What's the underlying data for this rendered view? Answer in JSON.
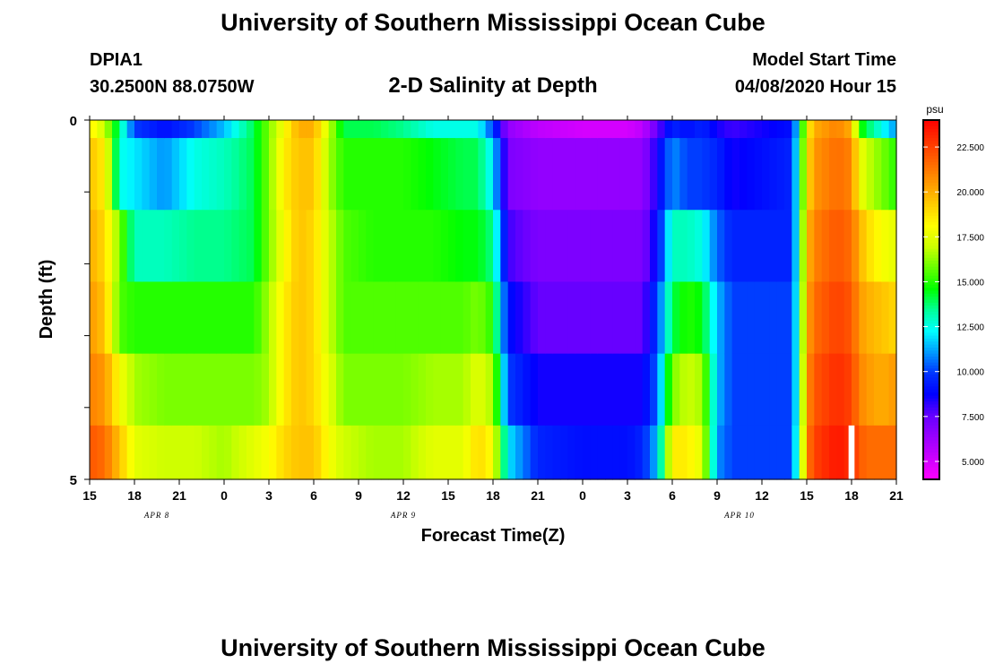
{
  "header": {
    "title": "University of Southern Mississippi Ocean Cube",
    "station_id": "DPIA1",
    "coordinates": "30.2500N 88.0750W",
    "plot_title": "2-D Salinity at Depth",
    "model_start_label": "Model Start Time",
    "model_start_value": "04/08/2020 Hour 15"
  },
  "footer": {
    "title": "University of Southern Mississippi Ocean Cube"
  },
  "chart_data": {
    "type": "heatmap",
    "title": "2-D Salinity at Depth",
    "xlabel": "Forecast Time(Z)",
    "ylabel": "Depth (ft)",
    "x_start_hour": 15,
    "x_end_hour": 69,
    "x_ticks": [
      {
        "hour": 15,
        "label": "15"
      },
      {
        "hour": 18,
        "label": "18"
      },
      {
        "hour": 21,
        "label": "21"
      },
      {
        "hour": 24,
        "label": "0"
      },
      {
        "hour": 27,
        "label": "3"
      },
      {
        "hour": 30,
        "label": "6"
      },
      {
        "hour": 33,
        "label": "9"
      },
      {
        "hour": 36,
        "label": "12"
      },
      {
        "hour": 39,
        "label": "15"
      },
      {
        "hour": 42,
        "label": "18"
      },
      {
        "hour": 45,
        "label": "21"
      },
      {
        "hour": 48,
        "label": "0"
      },
      {
        "hour": 51,
        "label": "3"
      },
      {
        "hour": 54,
        "label": "6"
      },
      {
        "hour": 57,
        "label": "9"
      },
      {
        "hour": 60,
        "label": "12"
      },
      {
        "hour": 63,
        "label": "15"
      },
      {
        "hour": 66,
        "label": "18"
      },
      {
        "hour": 69,
        "label": "21"
      }
    ],
    "date_labels": [
      {
        "hour": 19.5,
        "label": "APR 8"
      },
      {
        "hour": 36,
        "label": "APR 9"
      },
      {
        "hour": 58.5,
        "label": "APR 10"
      }
    ],
    "y_ticks": [
      {
        "depth": 0,
        "label": "0"
      },
      {
        "depth": 5,
        "label": "5"
      }
    ],
    "y_range": [
      0,
      5
    ],
    "depth_levels": [
      0.25,
      1.25,
      2.25,
      3.25,
      4.25
    ],
    "profiles": [
      {
        "hour": 15,
        "values": [
          18.5,
          19.5,
          20.0,
          20.5,
          21.0,
          22.0
        ]
      },
      {
        "hour": 16,
        "values": [
          17.0,
          18.5,
          19.0,
          19.5,
          20.5,
          21.5
        ]
      },
      {
        "hour": 17,
        "values": [
          13.5,
          12.5,
          16.0,
          15.5,
          18.0,
          19.5
        ]
      },
      {
        "hour": 18,
        "values": [
          10.0,
          12.0,
          13.0,
          15.0,
          16.5,
          17.5
        ]
      },
      {
        "hour": 20,
        "values": [
          9.0,
          11.0,
          13.0,
          15.0,
          16.0,
          17.0
        ]
      },
      {
        "hour": 22,
        "values": [
          10.0,
          12.5,
          13.5,
          15.0,
          16.0,
          17.0
        ]
      },
      {
        "hour": 24,
        "values": [
          11.5,
          13.0,
          13.5,
          15.0,
          16.0,
          16.5
        ]
      },
      {
        "hour": 26,
        "values": [
          14.0,
          14.0,
          14.0,
          15.0,
          16.0,
          17.5
        ]
      },
      {
        "hour": 27,
        "values": [
          16.0,
          16.0,
          16.0,
          16.5,
          16.5,
          18.0
        ]
      },
      {
        "hour": 28,
        "values": [
          18.0,
          18.5,
          18.0,
          18.5,
          18.5,
          19.0
        ]
      },
      {
        "hour": 29,
        "values": [
          20.0,
          19.5,
          19.5,
          19.5,
          19.5,
          19.5
        ]
      },
      {
        "hour": 30,
        "values": [
          20.0,
          19.5,
          19.0,
          19.0,
          19.0,
          19.5
        ]
      },
      {
        "hour": 31,
        "values": [
          17.0,
          16.5,
          17.0,
          17.0,
          17.5,
          18.0
        ]
      },
      {
        "hour": 32,
        "values": [
          14.0,
          15.0,
          15.5,
          15.5,
          16.0,
          17.0
        ]
      },
      {
        "hour": 34,
        "values": [
          14.0,
          15.0,
          15.0,
          15.5,
          16.0,
          16.5
        ]
      },
      {
        "hour": 36,
        "values": [
          13.5,
          15.0,
          15.0,
          15.5,
          16.0,
          16.5
        ]
      },
      {
        "hour": 38,
        "values": [
          12.5,
          14.5,
          15.0,
          15.5,
          16.5,
          17.5
        ]
      },
      {
        "hour": 40,
        "values": [
          12.5,
          14.0,
          14.5,
          15.5,
          16.5,
          17.5
        ]
      },
      {
        "hour": 41,
        "values": [
          12.5,
          14.0,
          14.5,
          16.0,
          17.5,
          19.0
        ]
      },
      {
        "hour": 42,
        "values": [
          10.0,
          12.0,
          13.5,
          15.0,
          16.5,
          18.0
        ]
      },
      {
        "hour": 43,
        "values": [
          6.5,
          7.0,
          8.0,
          9.0,
          10.0,
          12.0
        ]
      },
      {
        "hour": 45,
        "values": [
          5.5,
          6.5,
          7.0,
          7.5,
          8.5,
          9.5
        ]
      },
      {
        "hour": 48,
        "values": [
          5.0,
          6.5,
          7.0,
          7.5,
          8.5,
          9.0
        ]
      },
      {
        "hour": 51,
        "values": [
          5.0,
          6.5,
          7.0,
          7.5,
          8.5,
          9.0
        ]
      },
      {
        "hour": 52,
        "values": [
          5.5,
          6.5,
          7.0,
          7.5,
          8.5,
          9.5
        ]
      },
      {
        "hour": 53,
        "values": [
          7.5,
          8.5,
          9.0,
          10.0,
          10.5,
          11.5
        ]
      },
      {
        "hour": 54,
        "values": [
          9.5,
          11.0,
          13.0,
          14.0,
          16.0,
          18.5
        ]
      },
      {
        "hour": 55,
        "values": [
          9.0,
          10.0,
          13.0,
          15.0,
          17.0,
          18.5
        ]
      },
      {
        "hour": 56,
        "values": [
          9.5,
          10.0,
          12.5,
          14.5,
          16.5,
          17.5
        ]
      },
      {
        "hour": 57,
        "values": [
          8.5,
          9.5,
          10.5,
          11.5,
          11.5,
          11.0
        ]
      },
      {
        "hour": 58,
        "values": [
          8.0,
          8.5,
          9.5,
          10.0,
          10.0,
          10.0
        ]
      },
      {
        "hour": 60,
        "values": [
          8.5,
          9.0,
          9.5,
          10.0,
          10.0,
          10.0
        ]
      },
      {
        "hour": 62,
        "values": [
          9.0,
          9.5,
          9.5,
          10.0,
          10.0,
          10.0
        ]
      },
      {
        "hour": 62.5,
        "values": [
          13.0,
          13.5,
          13.5,
          13.5,
          13.5,
          14.0
        ]
      },
      {
        "hour": 63,
        "values": [
          18.0,
          18.5,
          19.5,
          20.0,
          20.5,
          21.0
        ]
      },
      {
        "hour": 63.5,
        "values": [
          20.0,
          20.5,
          21.0,
          21.5,
          22.0,
          22.5
        ]
      },
      {
        "hour": 65,
        "values": [
          21.0,
          21.5,
          22.0,
          22.5,
          23.0,
          23.5
        ]
      },
      {
        "hour": 66,
        "values": [
          20.0,
          21.0,
          21.5,
          22.0,
          22.5,
          23.0
        ]
      },
      {
        "hour": 66.5,
        "values": [
          15.0,
          18.0,
          20.0,
          20.5,
          21.0,
          22.0
        ]
      },
      {
        "hour": 67,
        "values": [
          14.0,
          17.0,
          19.0,
          20.0,
          20.5,
          21.5
        ]
      },
      {
        "hour": 68,
        "values": [
          12.5,
          16.0,
          18.0,
          19.5,
          20.0,
          21.5
        ]
      },
      {
        "hour": 69,
        "values": [
          11.0,
          15.0,
          17.5,
          19.0,
          20.5,
          21.5
        ]
      }
    ],
    "missing_cell": {
      "hour_start": 65.8,
      "hour_end": 66.2,
      "depth_start": 4.25,
      "depth_end": 5.0
    },
    "colorbar": {
      "unit": "psu",
      "min": 4.0,
      "max": 24.0,
      "tick_values": [
        5.0,
        7.5,
        10.0,
        12.5,
        15.0,
        17.5,
        20.0,
        22.5
      ],
      "tick_labels": [
        "5.000",
        "7.500",
        "10.000",
        "12.500",
        "15.000",
        "17.500",
        "20.000",
        "22.500"
      ],
      "colors": [
        "#ff00ff",
        "#cc00ff",
        "#9900ff",
        "#6600ff",
        "#0000ff",
        "#0033ff",
        "#0099ff",
        "#00ffff",
        "#00ff99",
        "#00ff00",
        "#66ff00",
        "#ccff00",
        "#ffff00",
        "#ffcc00",
        "#ff9900",
        "#ff6600",
        "#ff3300",
        "#ff0000"
      ]
    }
  }
}
